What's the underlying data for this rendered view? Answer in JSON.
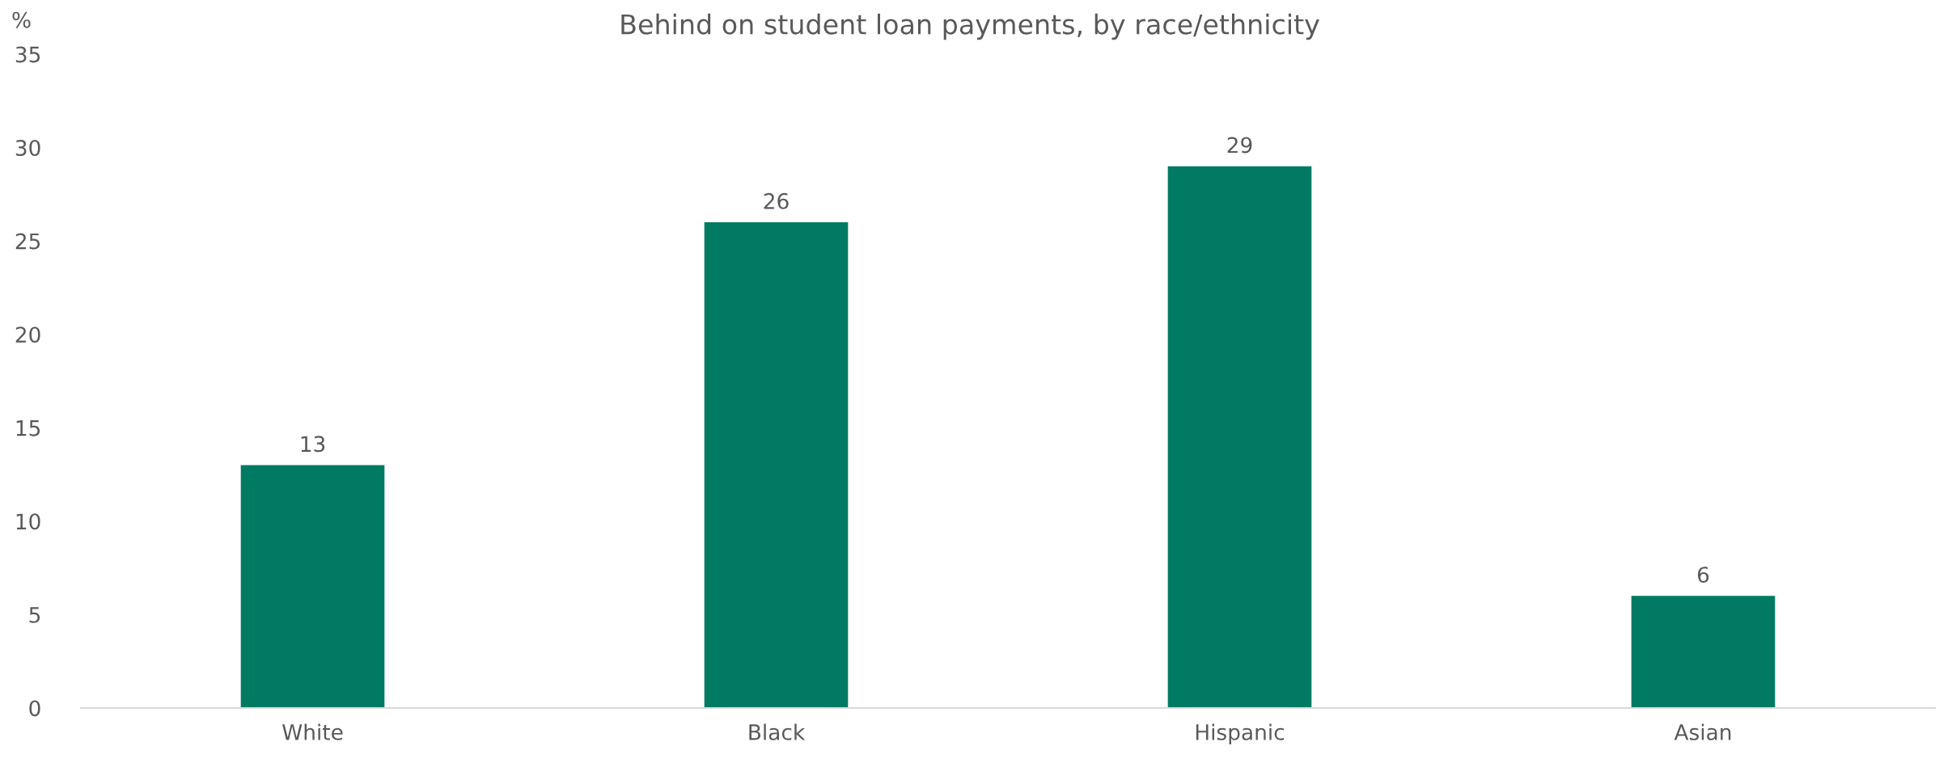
{
  "chart_data": {
    "type": "bar",
    "title": "Behind on student loan payments, by race/ethnicity",
    "ylabel": "%",
    "categories": [
      "White",
      "Black",
      "Hispanic",
      "Asian"
    ],
    "values": [
      13,
      26,
      29,
      6
    ],
    "color": "#007a62",
    "ylim": [
      0,
      35
    ],
    "yticks": [
      0,
      5,
      10,
      15,
      20,
      25,
      30,
      35
    ],
    "grid": false,
    "data_labels": true
  }
}
